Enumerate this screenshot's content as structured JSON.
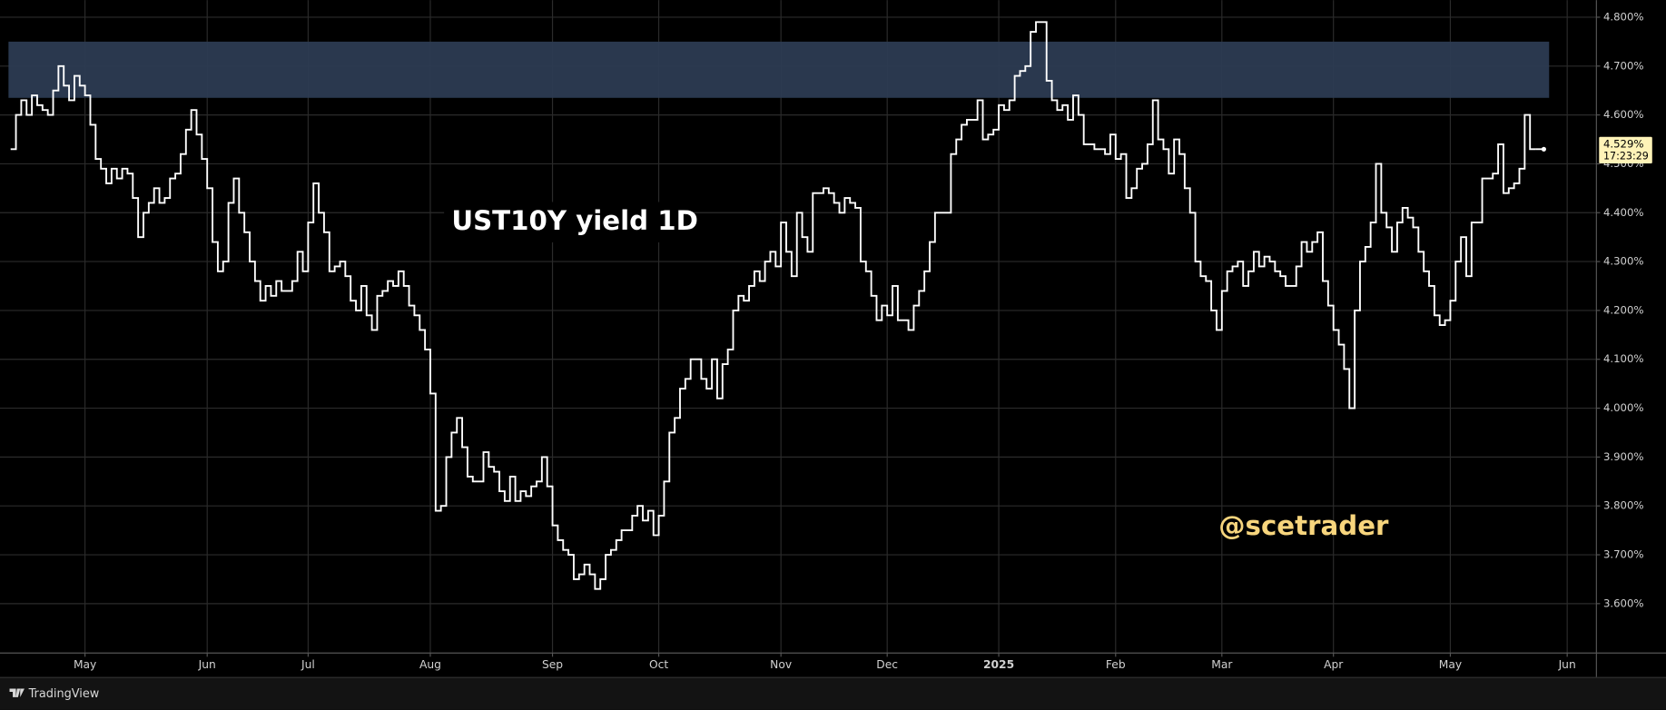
{
  "chart_data": {
    "type": "line",
    "step": true,
    "title": "UST10Y yield 1D",
    "watermark": "@scetrader",
    "color": "#ffffff",
    "grid": true,
    "ylim": [
      3.5,
      4.835
    ],
    "yticks": [
      {
        "value": 3.6,
        "label": "3.600%"
      },
      {
        "value": 3.7,
        "label": "3.700%"
      },
      {
        "value": 3.8,
        "label": "3.800%"
      },
      {
        "value": 3.9,
        "label": "3.900%"
      },
      {
        "value": 4.0,
        "label": "4.000%"
      },
      {
        "value": 4.1,
        "label": "4.100%"
      },
      {
        "value": 4.2,
        "label": "4.200%"
      },
      {
        "value": 4.3,
        "label": "4.300%"
      },
      {
        "value": 4.4,
        "label": "4.400%"
      },
      {
        "value": 4.5,
        "label": "4.500%"
      },
      {
        "value": 4.6,
        "label": "4.600%"
      },
      {
        "value": 4.7,
        "label": "4.700%"
      },
      {
        "value": 4.8,
        "label": "4.800%"
      }
    ],
    "zone": {
      "from": 4.635,
      "to": 4.75,
      "color": "#2c3b52"
    },
    "last_price": {
      "value": 4.529,
      "label": "4.529%",
      "countdown": "17:23:29",
      "color": "#fff3b8"
    },
    "categories": [
      null,
      null,
      null,
      null,
      null,
      null,
      null,
      null,
      null,
      null,
      null,
      null,
      null,
      null,
      "May",
      null,
      null,
      null,
      null,
      null,
      null,
      null,
      null,
      null,
      null,
      null,
      null,
      null,
      null,
      null,
      null,
      null,
      null,
      null,
      null,
      null,
      null,
      "Jun",
      null,
      null,
      null,
      null,
      null,
      null,
      null,
      null,
      null,
      null,
      null,
      null,
      null,
      null,
      null,
      null,
      null,
      null,
      "Jul",
      null,
      null,
      null,
      null,
      null,
      null,
      null,
      null,
      null,
      null,
      null,
      null,
      null,
      null,
      null,
      null,
      null,
      null,
      null,
      null,
      null,
      null,
      "Aug",
      null,
      null,
      null,
      null,
      null,
      null,
      null,
      null,
      null,
      null,
      null,
      null,
      null,
      null,
      null,
      null,
      null,
      null,
      null,
      null,
      null,
      null,
      "Sep",
      null,
      null,
      null,
      null,
      null,
      null,
      null,
      null,
      null,
      null,
      null,
      null,
      null,
      null,
      null,
      null,
      null,
      null,
      null,
      "Oct",
      null,
      null,
      null,
      null,
      null,
      null,
      null,
      null,
      null,
      null,
      null,
      null,
      null,
      null,
      null,
      null,
      null,
      null,
      null,
      null,
      null,
      null,
      "Nov",
      null,
      null,
      null,
      null,
      null,
      null,
      null,
      null,
      null,
      null,
      null,
      null,
      null,
      null,
      null,
      null,
      null,
      null,
      null,
      "Dec",
      null,
      null,
      null,
      null,
      null,
      null,
      null,
      null,
      null,
      null,
      null,
      null,
      null,
      null,
      null,
      null,
      null,
      null,
      null,
      null,
      "2025",
      null,
      null,
      null,
      null,
      null,
      null,
      null,
      null,
      null,
      null,
      null,
      null,
      null,
      null,
      null,
      null,
      null,
      null,
      null,
      null,
      null,
      "Feb",
      null,
      null,
      null,
      null,
      null,
      null,
      null,
      null,
      null,
      null,
      null,
      null,
      null,
      null,
      null,
      null,
      null,
      null,
      null,
      "Mar",
      null,
      null,
      null,
      null,
      null,
      null,
      null,
      null,
      null,
      null,
      null,
      null,
      null,
      null,
      null,
      null,
      null,
      null,
      null,
      null,
      "Apr",
      null,
      null,
      null,
      null,
      null,
      null,
      null,
      null,
      null,
      null,
      null,
      null,
      null,
      null,
      null,
      null,
      null,
      null,
      null,
      null,
      null,
      "May",
      null,
      null,
      null,
      null,
      null,
      null,
      null,
      null,
      null,
      null,
      null,
      null,
      null,
      null,
      null,
      null,
      null,
      null,
      null,
      null,
      null,
      "Jun",
      null,
      null,
      null,
      null,
      null
    ],
    "series": [
      {
        "name": "UST10Y",
        "color": "#ffffff",
        "values": [
          4.53,
          4.6,
          4.63,
          4.6,
          4.64,
          4.62,
          4.61,
          4.6,
          4.65,
          4.7,
          4.66,
          4.63,
          4.68,
          4.66,
          4.64,
          4.58,
          4.51,
          4.49,
          4.46,
          4.49,
          4.47,
          4.49,
          4.48,
          4.43,
          4.35,
          4.4,
          4.42,
          4.45,
          4.42,
          4.43,
          4.47,
          4.48,
          4.52,
          4.57,
          4.61,
          4.56,
          4.51,
          4.45,
          4.34,
          4.28,
          4.3,
          4.42,
          4.47,
          4.4,
          4.36,
          4.3,
          4.26,
          4.22,
          4.25,
          4.23,
          4.26,
          4.24,
          4.24,
          4.26,
          4.32,
          4.28,
          4.38,
          4.46,
          4.4,
          4.36,
          4.28,
          4.29,
          4.3,
          4.27,
          4.22,
          4.2,
          4.25,
          4.19,
          4.16,
          4.23,
          4.24,
          4.26,
          4.25,
          4.28,
          4.25,
          4.21,
          4.19,
          4.16,
          4.12,
          4.03,
          3.79,
          3.8,
          3.9,
          3.95,
          3.98,
          3.92,
          3.86,
          3.85,
          3.85,
          3.91,
          3.88,
          3.87,
          3.83,
          3.81,
          3.86,
          3.81,
          3.83,
          3.82,
          3.84,
          3.85,
          3.9,
          3.84,
          3.76,
          3.73,
          3.71,
          3.7,
          3.65,
          3.66,
          3.68,
          3.66,
          3.63,
          3.65,
          3.7,
          3.71,
          3.73,
          3.75,
          3.75,
          3.78,
          3.8,
          3.77,
          3.79,
          3.74,
          3.78,
          3.85,
          3.95,
          3.98,
          4.04,
          4.06,
          4.1,
          4.1,
          4.06,
          4.04,
          4.1,
          4.02,
          4.09,
          4.12,
          4.2,
          4.23,
          4.22,
          4.25,
          4.28,
          4.26,
          4.3,
          4.32,
          4.29,
          4.38,
          4.32,
          4.27,
          4.4,
          4.35,
          4.32,
          4.44,
          4.44,
          4.45,
          4.44,
          4.42,
          4.4,
          4.43,
          4.42,
          4.41,
          4.3,
          4.28,
          4.23,
          4.18,
          4.21,
          4.19,
          4.25,
          4.18,
          4.18,
          4.16,
          4.21,
          4.24,
          4.28,
          4.34,
          4.4,
          4.4,
          4.4,
          4.52,
          4.55,
          4.58,
          4.59,
          4.59,
          4.63,
          4.55,
          4.56,
          4.57,
          4.62,
          4.61,
          4.63,
          4.68,
          4.69,
          4.7,
          4.77,
          4.79,
          4.79,
          4.67,
          4.63,
          4.61,
          4.62,
          4.59,
          4.64,
          4.6,
          4.54,
          4.54,
          4.53,
          4.53,
          4.52,
          4.56,
          4.51,
          4.52,
          4.43,
          4.45,
          4.49,
          4.5,
          4.54,
          4.63,
          4.55,
          4.53,
          4.48,
          4.55,
          4.52,
          4.45,
          4.4,
          4.3,
          4.27,
          4.26,
          4.2,
          4.16,
          4.24,
          4.28,
          4.29,
          4.3,
          4.25,
          4.28,
          4.32,
          4.29,
          4.31,
          4.3,
          4.28,
          4.27,
          4.25,
          4.25,
          4.29,
          4.34,
          4.32,
          4.34,
          4.36,
          4.26,
          4.21,
          4.16,
          4.13,
          4.08,
          4.0,
          4.2,
          4.3,
          4.33,
          4.38,
          4.5,
          4.4,
          4.37,
          4.32,
          4.38,
          4.41,
          4.39,
          4.37,
          4.32,
          4.28,
          4.25,
          4.19,
          4.17,
          4.18,
          4.22,
          4.3,
          4.35,
          4.27,
          4.38,
          4.38,
          4.47,
          4.47,
          4.48,
          4.54,
          4.44,
          4.45,
          4.46,
          4.49,
          4.6,
          4.53,
          4.53,
          null,
          null,
          null,
          null,
          null,
          null,
          null,
          null,
          null,
          null,
          null
        ]
      }
    ]
  },
  "footer": {
    "brand": "TradingView"
  }
}
